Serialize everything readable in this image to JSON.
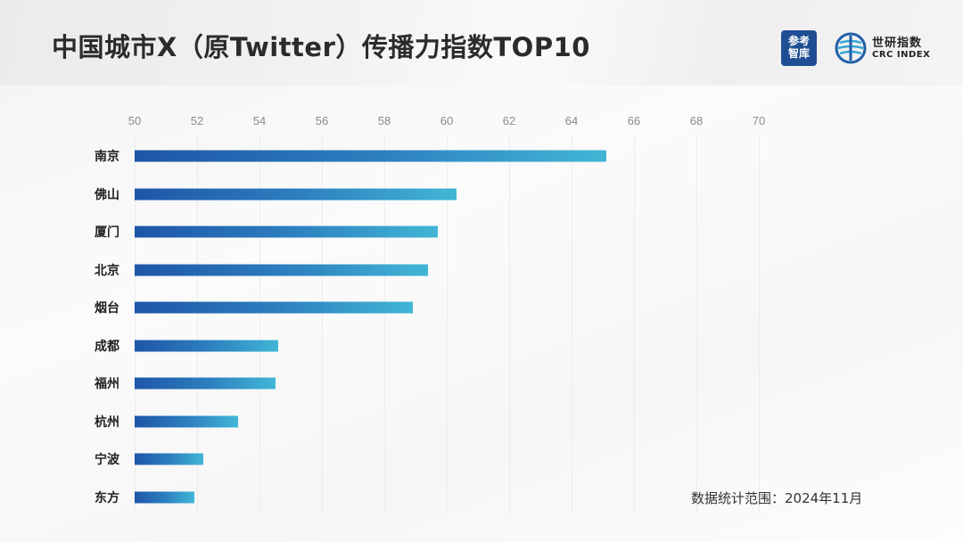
{
  "header": {
    "title": "中国城市X（原Twitter）传播力指数TOP10",
    "logo_left": {
      "line1": "参考",
      "line2": "智库"
    },
    "logo_right": {
      "cn": "世研指数",
      "en": "CRC INDEX"
    }
  },
  "footnote": "数据统计范围：2024年11月",
  "colors": {
    "bar_start": "#1e56a8",
    "bar_end": "#41b6d6",
    "logo_bg": "#1f4e93"
  },
  "chart_data": {
    "type": "bar",
    "orientation": "horizontal",
    "title": "中国城市X（原Twitter）传播力指数TOP10",
    "xlabel": "",
    "ylabel": "",
    "xlim": [
      50,
      70
    ],
    "x_ticks": [
      "50",
      "52",
      "54",
      "56",
      "58",
      "60",
      "62",
      "64",
      "66",
      "68",
      "70"
    ],
    "axis_position": "top",
    "grid": true,
    "categories": [
      "南京",
      "佛山",
      "厦门",
      "北京",
      "烟台",
      "成都",
      "福州",
      "杭州",
      "宁波",
      "东方"
    ],
    "values": [
      65.1,
      60.3,
      59.7,
      59.4,
      58.9,
      54.6,
      54.5,
      53.3,
      52.2,
      51.9
    ],
    "annotation": "数据统计范围：2024年11月"
  }
}
